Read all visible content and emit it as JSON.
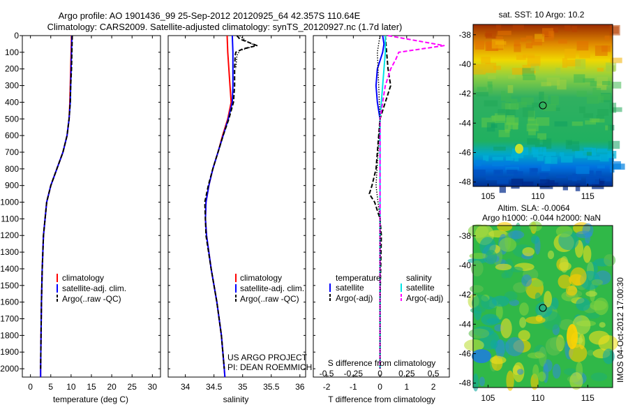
{
  "header": {
    "title_line1": "Argo profile: AO 1901436_99 25-Sep-2012 20120925_64 42.357S 110.64E",
    "title_line2": "Climatology: CARS2009. Satellite-adjusted climatology: synTS_20120927.nc (1.7d later)"
  },
  "credits": {
    "line1": "US ARGO PROJECT",
    "line2": "PI: DEAN ROEMMICH",
    "stamp": "IMOS 04-Oct-2012 17:00:30"
  },
  "colors": {
    "climatology": "#ff0000",
    "satellite": "#0000ff",
    "argo": "#000000",
    "satellite_salinity": "#00e5e5",
    "argo_salinity_adj": "#ff00ff"
  },
  "depth_axis": {
    "ylim": [
      0,
      2050
    ],
    "ticks": [
      0,
      100,
      200,
      300,
      400,
      500,
      600,
      700,
      800,
      900,
      1000,
      1100,
      1200,
      1300,
      1400,
      1500,
      1600,
      1700,
      1800,
      1900,
      2000
    ]
  },
  "chart_data": [
    {
      "id": "temperature",
      "type": "line",
      "xlabel": "temperature (deg C)",
      "xlim": [
        -2,
        32
      ],
      "xticks": [
        0,
        5,
        10,
        15,
        20,
        25,
        30
      ],
      "legend": [
        "climatology",
        "satellite-adj. clim.",
        "Argo(..raw -QC)"
      ],
      "legend_placement": "lower-center",
      "series": [
        {
          "name": "climatology",
          "color": "#ff0000",
          "style": "solid",
          "depth": [
            0,
            100,
            200,
            300,
            400,
            500,
            600,
            700,
            800,
            900,
            1000,
            1200,
            1400,
            1600,
            1800,
            2000,
            2050
          ],
          "values": [
            10.1,
            10.0,
            9.9,
            9.8,
            9.7,
            9.5,
            9.0,
            8.0,
            6.5,
            5.0,
            4.0,
            3.2,
            2.9,
            2.7,
            2.6,
            2.5,
            2.5
          ]
        },
        {
          "name": "satellite-adj. clim.",
          "color": "#0000ff",
          "style": "solid",
          "depth": [
            0,
            100,
            200,
            300,
            400,
            500,
            600,
            700,
            800,
            900,
            1000,
            1200,
            1400,
            1600,
            1800,
            2000,
            2050
          ],
          "values": [
            10.2,
            10.1,
            10.0,
            9.9,
            9.8,
            9.5,
            9.0,
            8.0,
            6.5,
            5.0,
            4.0,
            3.2,
            2.9,
            2.7,
            2.6,
            2.5,
            2.5
          ]
        },
        {
          "name": "Argo(..raw -QC)",
          "color": "#000000",
          "style": "dashed",
          "depth": [
            0,
            100,
            200,
            300,
            400,
            500,
            600,
            700,
            800,
            900,
            1000,
            1200,
            1400,
            1600,
            1800,
            2000
          ],
          "values": [
            10.3,
            10.2,
            10.1,
            9.9,
            9.8,
            9.5,
            9.0,
            8.0,
            6.5,
            5.0,
            4.0,
            3.2,
            2.9,
            2.7,
            2.6,
            2.5
          ]
        }
      ]
    },
    {
      "id": "salinity",
      "type": "line",
      "xlabel": "salinity",
      "xlim": [
        33.7,
        36.1
      ],
      "xticks": [
        34,
        34.5,
        35,
        35.5,
        36
      ],
      "legend": [
        "climatology",
        "satellite-adj. clim.",
        "Argo(..raw -QC)"
      ],
      "legend_placement": "lower-center",
      "series": [
        {
          "name": "climatology",
          "color": "#ff0000",
          "style": "solid",
          "depth": [
            0,
            100,
            200,
            300,
            400,
            500,
            600,
            700,
            800,
            900,
            1000,
            1100,
            1200,
            1400,
            1600,
            1800,
            2000,
            2050
          ],
          "values": [
            34.73,
            34.74,
            34.76,
            34.78,
            34.8,
            34.74,
            34.65,
            34.57,
            34.48,
            34.41,
            34.36,
            34.35,
            34.37,
            34.45,
            34.55,
            34.63,
            34.68,
            34.69
          ]
        },
        {
          "name": "satellite-adj. clim.",
          "color": "#0000ff",
          "style": "solid",
          "depth": [
            0,
            100,
            200,
            300,
            400,
            500,
            600,
            700,
            800,
            900,
            1000,
            1100,
            1200,
            1400,
            1600,
            1800,
            2000,
            2050
          ],
          "values": [
            34.82,
            34.83,
            34.83,
            34.83,
            34.82,
            34.75,
            34.66,
            34.57,
            34.48,
            34.41,
            34.36,
            34.35,
            34.37,
            34.45,
            34.55,
            34.63,
            34.68,
            34.69
          ]
        },
        {
          "name": "Argo(..raw -QC)",
          "color": "#000000",
          "style": "dashed",
          "depth": [
            0,
            20,
            40,
            60,
            80,
            100,
            120,
            200,
            300,
            400,
            500,
            600,
            700,
            800,
            900,
            1000,
            1200,
            1400,
            1600,
            1800,
            2000
          ],
          "values": [
            34.9,
            34.95,
            35.1,
            35.25,
            35.0,
            34.88,
            34.87,
            34.86,
            34.86,
            34.84,
            34.76,
            34.66,
            34.57,
            34.48,
            34.4,
            34.34,
            34.36,
            34.45,
            34.55,
            34.63,
            34.68
          ]
        },
        {
          "name": "",
          "color": "#000000",
          "style": "dotted",
          "depth": [
            0,
            30,
            60,
            90,
            120,
            200
          ],
          "values": [
            34.95,
            35.05,
            35.22,
            34.95,
            34.9,
            34.88
          ]
        }
      ]
    },
    {
      "id": "difference",
      "type": "line",
      "xlabel": "T difference from climatology",
      "xlim": [
        -2.5,
        2.6
      ],
      "xticks": [
        -2,
        -1,
        0,
        1,
        2
      ],
      "top_axis_label": "S difference from climatology",
      "top_ticks": [
        -0.5,
        -0.25,
        0,
        0.25,
        0.5
      ],
      "legend_headers": [
        "temperature",
        "salinity"
      ],
      "legend": [
        "satellite",
        "Argo(-adj)",
        "satellite",
        "Argo(-adj)"
      ],
      "legend_placement": "lower-center",
      "series": [
        {
          "name": "satellite",
          "color": "#0000ff",
          "style": "solid",
          "depth": [
            0,
            50,
            100,
            200,
            300,
            400,
            500,
            600,
            800,
            1000,
            1200,
            1600,
            2000
          ],
          "values": [
            0.1,
            0.15,
            0.1,
            -0.1,
            -0.15,
            -0.1,
            0.0,
            0.0,
            0.0,
            0.0,
            0.0,
            0.0,
            0.0
          ]
        },
        {
          "name": "Argo(-adj)",
          "color": "#000000",
          "style": "dashed",
          "depth": [
            0,
            100,
            200,
            300,
            400,
            500,
            600,
            700,
            800,
            900,
            950,
            1000,
            1100,
            1200,
            1600,
            2000
          ],
          "values": [
            0.2,
            0.25,
            0.3,
            0.4,
            0.2,
            0.0,
            -0.05,
            -0.1,
            -0.15,
            -0.3,
            -0.4,
            -0.2,
            0.0,
            0.05,
            0.0,
            0.0
          ]
        },
        {
          "name": "satellite",
          "color": "#00e5e5",
          "style": "solid",
          "depth": [
            0,
            100,
            200,
            300,
            400,
            500,
            600,
            800,
            1000,
            1200,
            1600,
            2000
          ],
          "values": [
            0.2,
            0.2,
            0.15,
            0.1,
            0.05,
            0.0,
            0.0,
            0.0,
            0.0,
            0.0,
            0.0,
            0.0
          ]
        },
        {
          "name": "Argo(-adj)",
          "color": "#ff00ff",
          "style": "dashed",
          "depth": [
            0,
            60,
            100,
            140,
            200,
            300,
            400,
            500,
            800,
            1200,
            1600,
            2000
          ],
          "values": [
            0.3,
            2.4,
            0.7,
            0.6,
            0.4,
            0.2,
            0.1,
            0.0,
            0.0,
            0.0,
            0.0,
            0.0
          ]
        },
        {
          "name": "",
          "color": "#000000",
          "style": "dotted",
          "depth": [
            0,
            100,
            300,
            500,
            900,
            1100,
            1400,
            2000
          ],
          "values": [
            0.0,
            -0.1,
            -0.05,
            0.0,
            -0.15,
            0.0,
            0.0,
            0.0
          ]
        }
      ]
    },
    {
      "id": "sst-map",
      "type": "heatmap",
      "title": "sat. SST: 10 Argo: 10.2",
      "xticks": [
        105,
        110,
        115
      ],
      "yticks": [
        -38,
        -40,
        -42,
        -44,
        -46,
        -48
      ],
      "xlim": [
        103.5,
        117.5
      ],
      "ylim": [
        -48.3,
        -37.3
      ],
      "marker": {
        "lon": 110.64,
        "lat": -42.357
      }
    },
    {
      "id": "sla-map",
      "type": "heatmap",
      "title": "Altim. SLA: -0.0064",
      "subtitle": "Argo h1000: -0.044 h2000: NaN",
      "xticks": [
        105,
        110,
        115
      ],
      "yticks": [
        -38,
        -40,
        -42,
        -44,
        -46,
        -48
      ],
      "xlim": [
        103.5,
        117.5
      ],
      "ylim": [
        -48.3,
        -37.3
      ],
      "marker": {
        "lon": 110.64,
        "lat": -42.357
      }
    }
  ]
}
